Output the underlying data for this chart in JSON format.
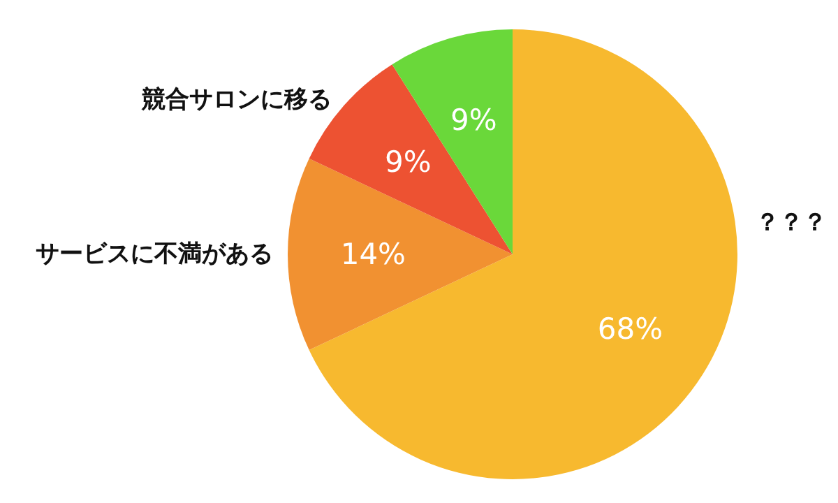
{
  "chart_data": {
    "type": "pie",
    "categories": [
      "？？？",
      "サービスに不満がある",
      "競合サロンに移る",
      null
    ],
    "values": [
      68,
      14,
      9,
      9
    ],
    "colors": [
      "#f7b92f",
      "#f19131",
      "#ed5232",
      "#6ad83a"
    ],
    "value_labels": [
      "68%",
      "14%",
      "9%",
      "9%"
    ]
  }
}
